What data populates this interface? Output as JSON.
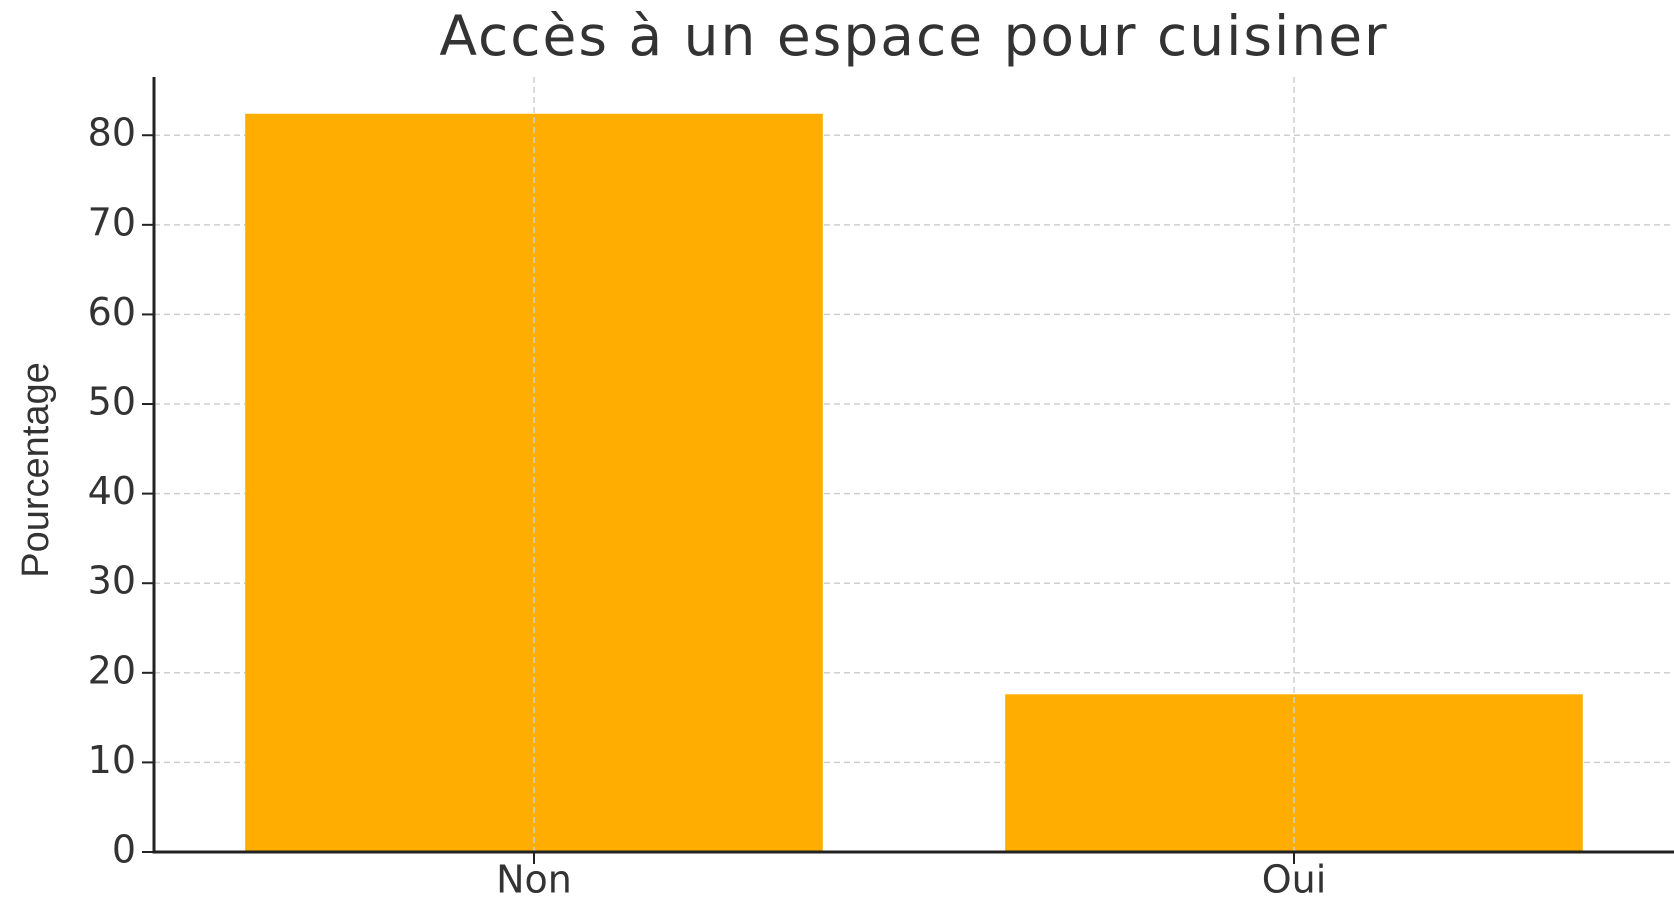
{
  "chart_data": {
    "type": "bar",
    "title": "Accès à un espace pour cuisiner",
    "y_label": "Pourcentage",
    "categories": [
      "Non",
      "Oui"
    ],
    "values": [
      82.4,
      17.6
    ],
    "color": "#ffae00",
    "ylim": [
      0,
      86.5
    ],
    "yticks": [
      0,
      10,
      20,
      30,
      40,
      50,
      60,
      70,
      80
    ],
    "grid": true
  }
}
